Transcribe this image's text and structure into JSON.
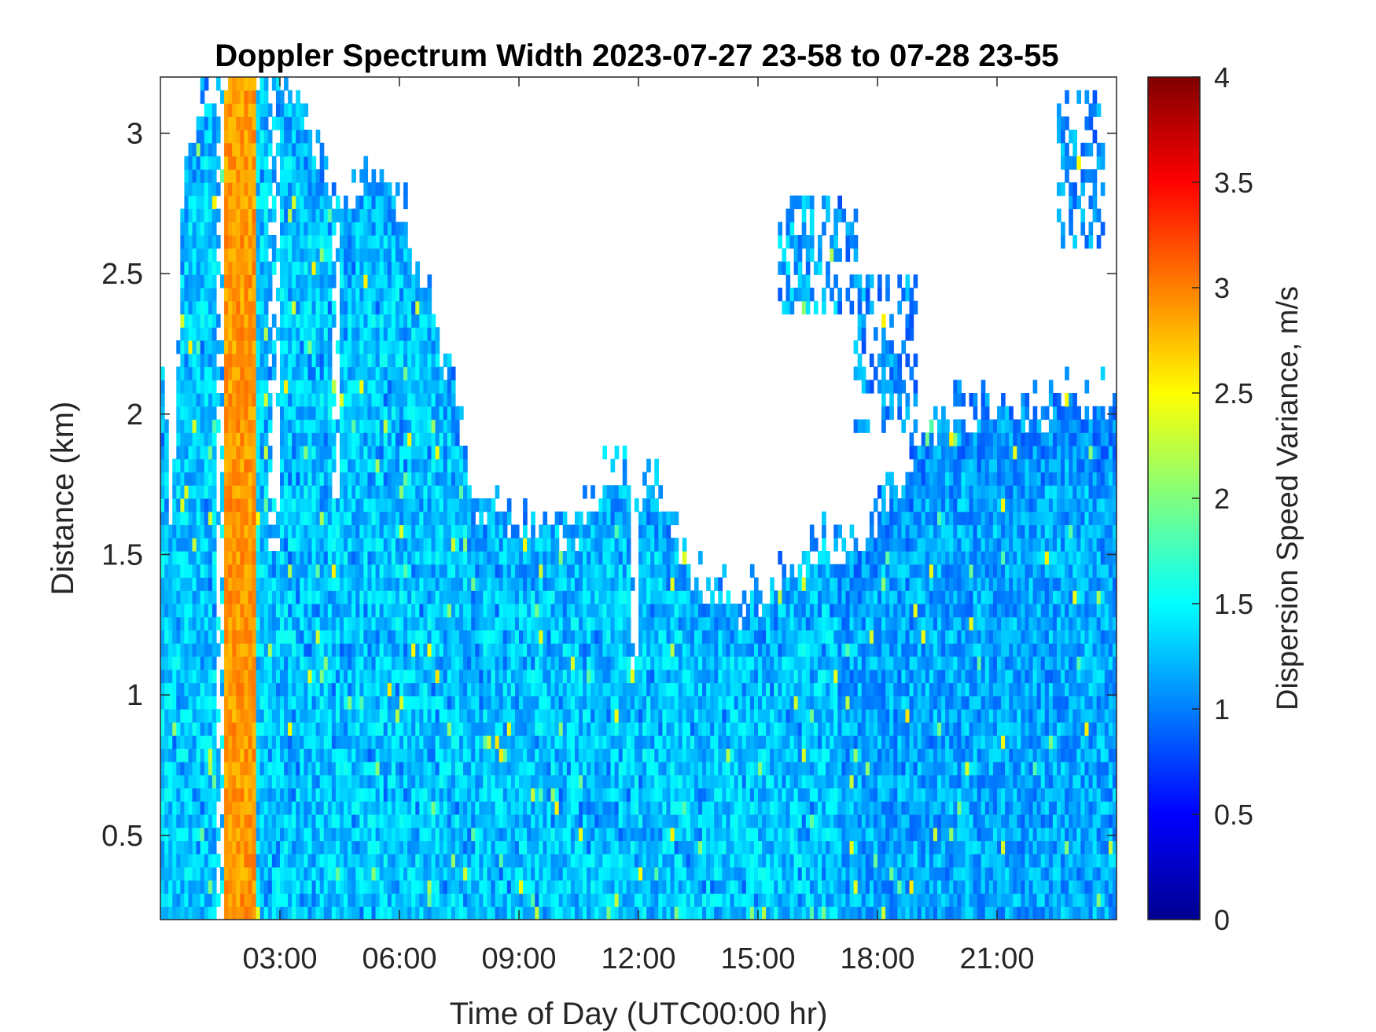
{
  "chart_data": {
    "type": "heatmap",
    "title": "Doppler Spectrum Width 2023-07-27 23-58 to 07-28 23-55",
    "xlabel": "Time of Day (UTC00:00 hr)",
    "ylabel": "Distance (km)",
    "colorbar_label": "Dispersion Speed Variance, m/s",
    "colormap": "jet",
    "xlim": [
      0.0,
      24.0
    ],
    "ylim": [
      0.2,
      3.2
    ],
    "clim": [
      0,
      4
    ],
    "x_ticks": [
      {
        "value": 3,
        "label": "03:00"
      },
      {
        "value": 6,
        "label": "06:00"
      },
      {
        "value": 9,
        "label": "09:00"
      },
      {
        "value": 12,
        "label": "12:00"
      },
      {
        "value": 15,
        "label": "15:00"
      },
      {
        "value": 18,
        "label": "18:00"
      },
      {
        "value": 21,
        "label": "21:00"
      }
    ],
    "y_ticks": [
      {
        "value": 0.5,
        "label": "0.5"
      },
      {
        "value": 1,
        "label": "1"
      },
      {
        "value": 1.5,
        "label": "1.5"
      },
      {
        "value": 2,
        "label": "2"
      },
      {
        "value": 2.5,
        "label": "2.5"
      },
      {
        "value": 3,
        "label": "3"
      }
    ],
    "colorbar_ticks": [
      {
        "value": 0,
        "label": "0"
      },
      {
        "value": 0.5,
        "label": "0.5"
      },
      {
        "value": 1,
        "label": "1"
      },
      {
        "value": 1.5,
        "label": "1.5"
      },
      {
        "value": 2,
        "label": "2"
      },
      {
        "value": 2.5,
        "label": "2.5"
      },
      {
        "value": 3,
        "label": "3"
      },
      {
        "value": 3.5,
        "label": "3.5"
      },
      {
        "value": 4,
        "label": "4"
      }
    ],
    "data_top_profile": [
      {
        "t": 0.0,
        "top": 2.3
      },
      {
        "t": 0.3,
        "top": 1.5
      },
      {
        "t": 0.6,
        "top": 2.9
      },
      {
        "t": 1.2,
        "top": 3.1
      },
      {
        "t": 1.6,
        "top": 3.2
      },
      {
        "t": 2.3,
        "top": 3.2
      },
      {
        "t": 3.5,
        "top": 3.1
      },
      {
        "t": 4.5,
        "top": 2.7
      },
      {
        "t": 5.5,
        "top": 2.9
      },
      {
        "t": 6.5,
        "top": 2.5
      },
      {
        "t": 7.3,
        "top": 2.1
      },
      {
        "t": 7.8,
        "top": 1.65
      },
      {
        "t": 9.0,
        "top": 1.58
      },
      {
        "t": 10.5,
        "top": 1.55
      },
      {
        "t": 11.3,
        "top": 1.75
      },
      {
        "t": 12.5,
        "top": 1.68
      },
      {
        "t": 13.5,
        "top": 1.35
      },
      {
        "t": 14.5,
        "top": 1.28
      },
      {
        "t": 15.5,
        "top": 1.38
      },
      {
        "t": 16.5,
        "top": 1.48
      },
      {
        "t": 17.5,
        "top": 1.5
      },
      {
        "t": 18.5,
        "top": 1.75
      },
      {
        "t": 19.5,
        "top": 1.95
      },
      {
        "t": 21.0,
        "top": 1.98
      },
      {
        "t": 22.0,
        "top": 2.0
      },
      {
        "t": 24.0,
        "top": 2.0
      }
    ],
    "data_gaps": [
      {
        "t0": 1.4,
        "t1": 1.55,
        "bottom": 0.2
      },
      {
        "t0": 2.75,
        "t1": 2.95,
        "bottom": 1.5
      },
      {
        "t0": 4.35,
        "t1": 4.5,
        "bottom": 1.7
      },
      {
        "t0": 11.8,
        "t1": 12.0,
        "bottom": 1.1
      }
    ],
    "high_value_band": {
      "t0": 1.6,
      "t1": 2.35,
      "value": 2.9
    },
    "sparse_regions": [
      {
        "t0": 15.5,
        "t1": 17.5,
        "bottom": 2.35,
        "top": 2.8
      },
      {
        "t0": 17.4,
        "t1": 19.0,
        "bottom": 1.95,
        "top": 2.5
      },
      {
        "t0": 22.5,
        "t1": 23.7,
        "bottom": 2.6,
        "top": 3.15
      }
    ]
  }
}
